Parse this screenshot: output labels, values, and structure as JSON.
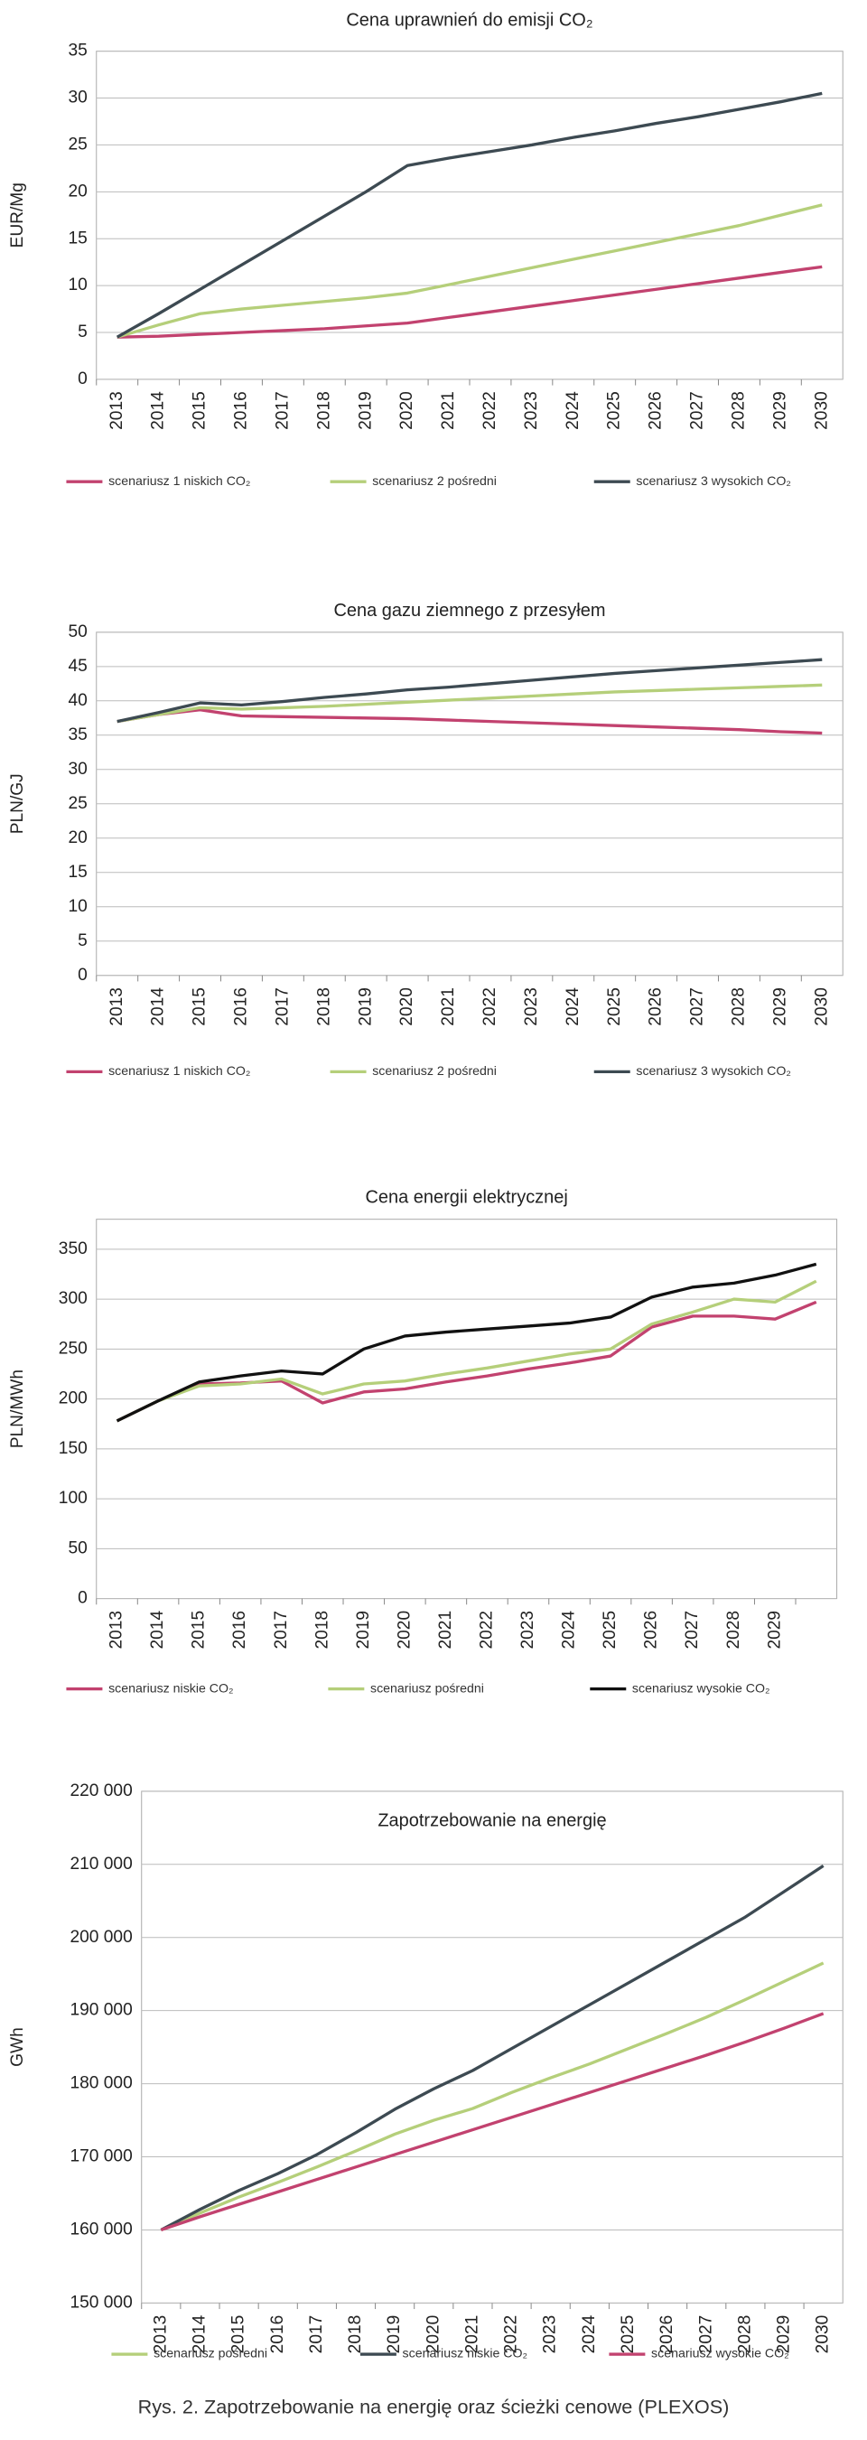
{
  "chart_data": [
    {
      "type": "line",
      "title": "Cena uprawnień do emisji CO₂",
      "ylabel": "EUR/Mg",
      "categories": [
        "2013",
        "2014",
        "2015",
        "2016",
        "2017",
        "2018",
        "2019",
        "2020",
        "2021",
        "2022",
        "2023",
        "2024",
        "2025",
        "2026",
        "2027",
        "2028",
        "2029",
        "2030"
      ],
      "ylim": [
        0,
        35
      ],
      "yticks": [
        0,
        5,
        10,
        15,
        20,
        25,
        30,
        35
      ],
      "grid": true,
      "series": [
        {
          "name": "scenariusz 1 niskich CO₂",
          "color": "#c2426f",
          "values": [
            4.5,
            4.6,
            4.8,
            5.0,
            5.2,
            5.4,
            5.7,
            6.0,
            6.6,
            7.2,
            7.8,
            8.4,
            9.0,
            9.6,
            10.2,
            10.8,
            11.4,
            12.0
          ]
        },
        {
          "name": "scenariusz 2 pośredni",
          "color": "#b5cf7a",
          "values": [
            4.5,
            5.8,
            7.0,
            7.5,
            7.9,
            8.3,
            8.7,
            9.2,
            10.1,
            11.0,
            11.9,
            12.8,
            13.7,
            14.6,
            15.5,
            16.4,
            17.5,
            18.6
          ]
        },
        {
          "name": "scenariusz 3 wysokich CO₂",
          "color": "#3d4a52",
          "values": [
            4.5,
            7.0,
            9.6,
            12.2,
            14.8,
            17.4,
            20.0,
            22.8,
            23.6,
            24.3,
            25.0,
            25.8,
            26.5,
            27.3,
            28.0,
            28.8,
            29.6,
            30.5
          ]
        }
      ]
    },
    {
      "type": "line",
      "title": "Cena gazu ziemnego z przesyłem",
      "ylabel": "PLN/GJ",
      "categories": [
        "2013",
        "2014",
        "2015",
        "2016",
        "2017",
        "2018",
        "2019",
        "2020",
        "2021",
        "2022",
        "2023",
        "2024",
        "2025",
        "2026",
        "2027",
        "2028",
        "2029",
        "2030"
      ],
      "ylim": [
        0,
        50
      ],
      "yticks": [
        0,
        5,
        10,
        15,
        20,
        25,
        30,
        35,
        40,
        45,
        50
      ],
      "grid": true,
      "series": [
        {
          "name": "scenariusz 1 niskich CO₂",
          "color": "#c2426f",
          "values": [
            37,
            38,
            38.7,
            37.8,
            37.7,
            37.6,
            37.5,
            37.4,
            37.2,
            37.0,
            36.8,
            36.6,
            36.4,
            36.2,
            36.0,
            35.8,
            35.5,
            35.3
          ]
        },
        {
          "name": "scenariusz 2 pośredni",
          "color": "#b5cf7a",
          "values": [
            37,
            38,
            39,
            38.8,
            39.0,
            39.2,
            39.5,
            39.8,
            40.1,
            40.4,
            40.7,
            41.0,
            41.3,
            41.5,
            41.7,
            41.9,
            42.1,
            42.3
          ]
        },
        {
          "name": "scenariusz 3 wysokich CO₂",
          "color": "#3d4a52",
          "values": [
            37,
            38.3,
            39.7,
            39.4,
            39.9,
            40.5,
            41.0,
            41.6,
            42.0,
            42.5,
            43.0,
            43.5,
            44.0,
            44.4,
            44.8,
            45.2,
            45.6,
            46.0
          ]
        }
      ]
    },
    {
      "type": "line",
      "title": "Cena energii elektrycznej",
      "ylabel": "PLN/MWh",
      "categories": [
        "2013",
        "2014",
        "2015",
        "2016",
        "2017",
        "2018",
        "2019",
        "2020",
        "2021",
        "2022",
        "2023",
        "2024",
        "2025",
        "2026",
        "2027",
        "2028",
        "2029",
        null
      ],
      "ylim": [
        0,
        380
      ],
      "yticks": [
        0,
        50,
        100,
        150,
        200,
        250,
        300,
        350
      ],
      "grid": true,
      "series": [
        {
          "name": "scenariusz niskie CO₂",
          "color": "#c2426f",
          "values": [
            178,
            198,
            215,
            216,
            218,
            196,
            207,
            210,
            217,
            223,
            230,
            236,
            243,
            272,
            283,
            283,
            280,
            297
          ]
        },
        {
          "name": "scenariusz pośredni",
          "color": "#b5cf7a",
          "values": [
            178,
            198,
            213,
            215,
            220,
            205,
            215,
            218,
            225,
            231,
            238,
            245,
            250,
            275,
            287,
            300,
            297,
            318
          ]
        },
        {
          "name": "scenariusz wysokie CO₂",
          "color": "#111111",
          "values": [
            178,
            198,
            217,
            223,
            228,
            225,
            250,
            263,
            267,
            270,
            273,
            276,
            282,
            302,
            312,
            316,
            324,
            335
          ]
        }
      ]
    },
    {
      "type": "line",
      "title": "Zapotrzebowanie na energię",
      "ylabel": "GWh",
      "categories": [
        "2013",
        "2014",
        "2015",
        "2016",
        "2017",
        "2018",
        "2019",
        "2020",
        "2021",
        "2022",
        "2023",
        "2024",
        "2025",
        "2026",
        "2027",
        "2028",
        "2029",
        "2030"
      ],
      "ylim": [
        150000,
        220000
      ],
      "yticks": [
        {
          "value": 150000,
          "label": "150 000"
        },
        {
          "value": 160000,
          "label": "160 000"
        },
        {
          "value": 170000,
          "label": "170 000"
        },
        {
          "value": 180000,
          "label": "180 000"
        },
        {
          "value": 190000,
          "label": "190 000"
        },
        {
          "value": 200000,
          "label": "200 000"
        },
        {
          "value": 210000,
          "label": "210 000"
        },
        {
          "value": 220000,
          "label": "220 000"
        }
      ],
      "grid": true,
      "series": [
        {
          "name": "scenariusz pośredni",
          "color": "#b5cf7a",
          "values": [
            160000,
            162300,
            164500,
            166500,
            168600,
            170800,
            173100,
            175000,
            176600,
            178800,
            180800,
            182700,
            184800,
            186900,
            189100,
            191500,
            194000,
            196500
          ]
        },
        {
          "name": "scenariusz niskie CO₂",
          "color": "#3d4a52",
          "values": [
            160000,
            162800,
            165400,
            167700,
            170300,
            173300,
            176500,
            179300,
            181800,
            184800,
            187800,
            190800,
            193800,
            196800,
            199800,
            202800,
            206300,
            209800
          ]
        },
        {
          "name": "scenariusz wysokie CO₂",
          "color": "#c2426f",
          "values": [
            160000,
            161800,
            163500,
            165200,
            166900,
            168600,
            170300,
            172000,
            173700,
            175400,
            177100,
            178800,
            180500,
            182200,
            183900,
            185700,
            187600,
            189600
          ]
        }
      ]
    }
  ],
  "caption": "Rys. 2. Zapotrzebowanie na energię oraz ścieżki cenowe (PLEXOS)"
}
